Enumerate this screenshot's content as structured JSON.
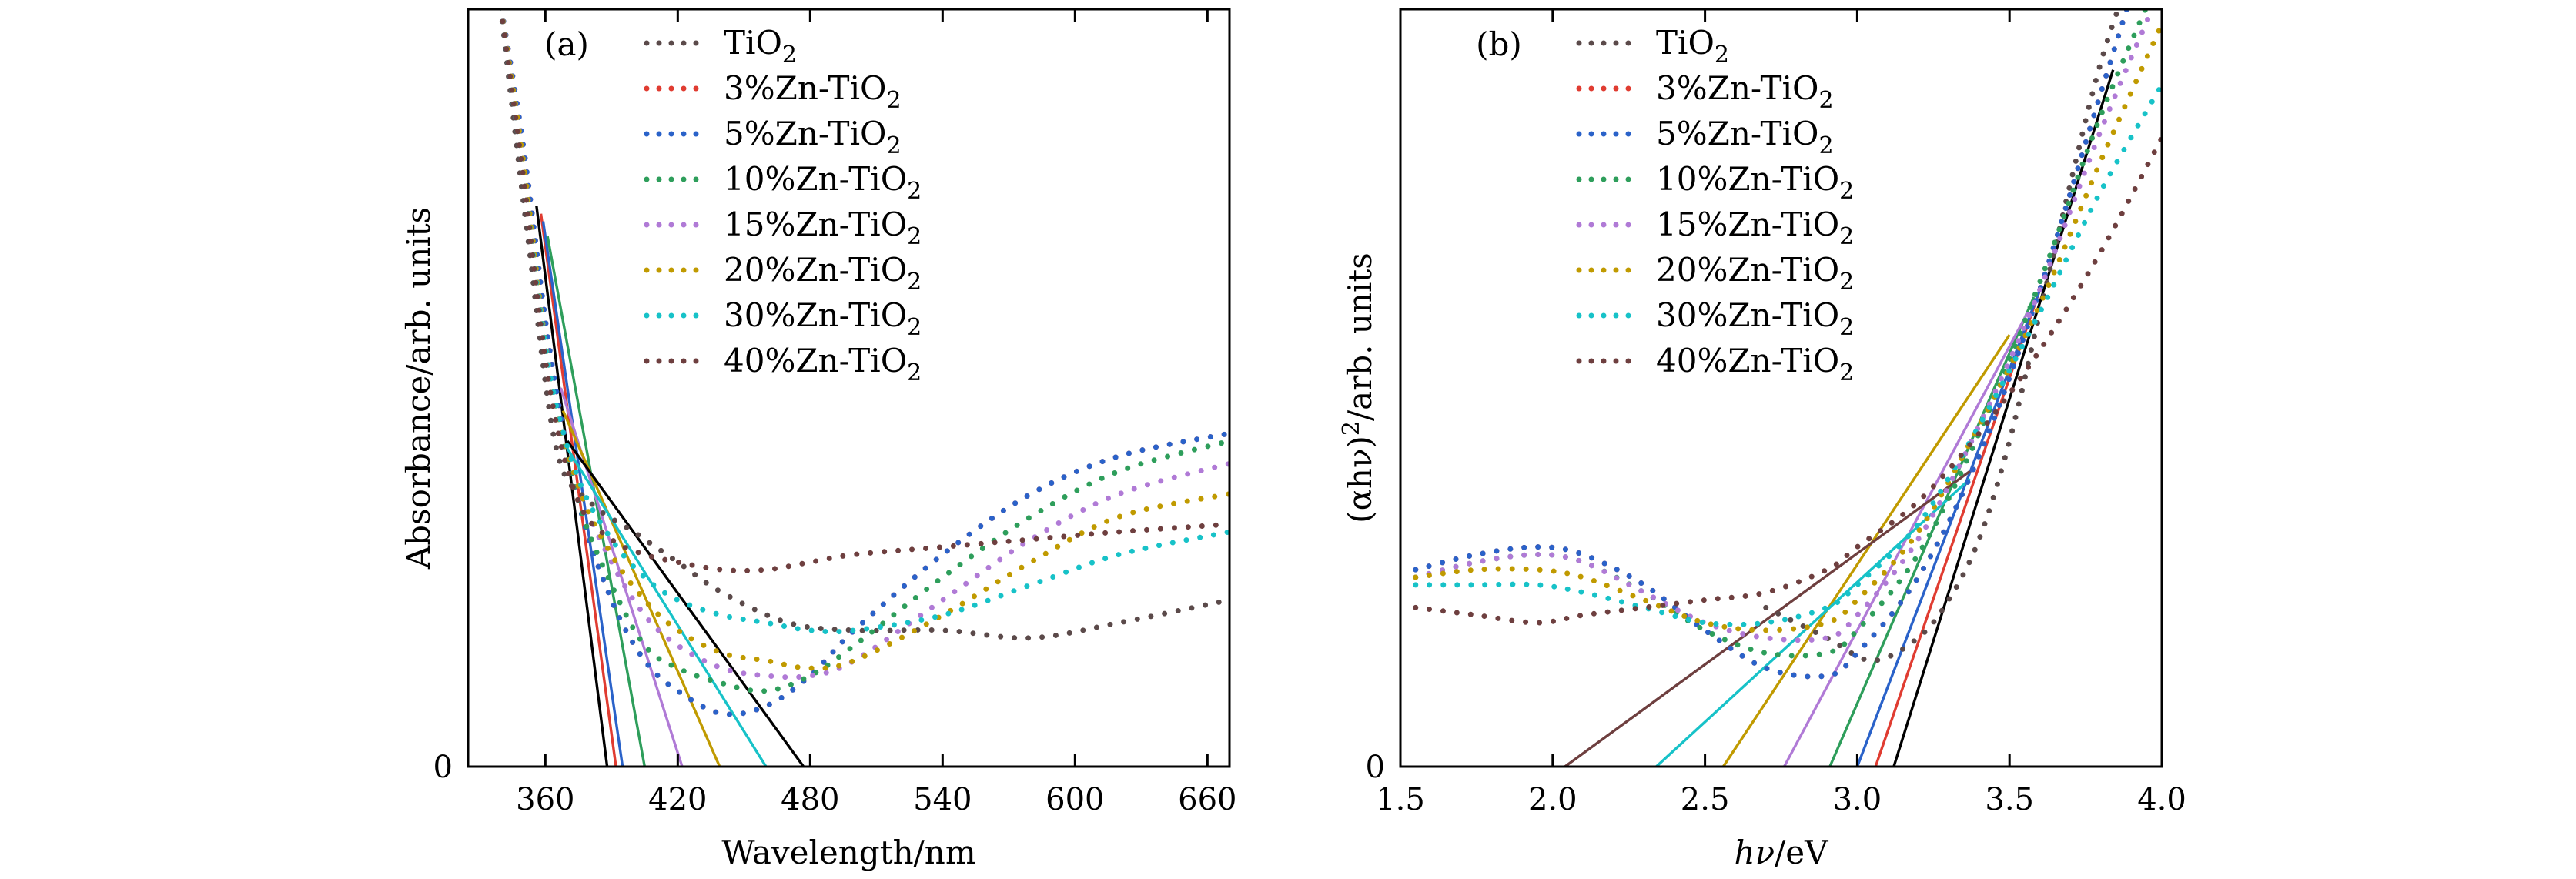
{
  "chart_data": [
    {
      "type": "line",
      "panel_label": "(a)",
      "xlabel": "Wavelength/nm",
      "ylabel": "Absorbance/arb. units",
      "xlim": [
        325,
        670
      ],
      "ylim": [
        0,
        1
      ],
      "xticks": [
        360,
        420,
        480,
        540,
        600,
        660
      ],
      "yticks": [
        0
      ],
      "legend_location": "upper-left",
      "series": [
        {
          "name": "TiO",
          "sub": "2",
          "color": "#5b4a4a",
          "x": [
            339,
            352,
            365,
            380,
            400,
            420,
            440,
            470,
            500,
            540,
            580,
            620,
            670
          ],
          "y": [
            1.02,
            0.7,
            0.42,
            0.35,
            0.31,
            0.27,
            0.23,
            0.19,
            0.18,
            0.18,
            0.17,
            0.19,
            0.22
          ]
        },
        {
          "name": "3%Zn-TiO",
          "sub": "2",
          "color": "#e03c31",
          "x": [
            339,
            350,
            362,
            375,
            390,
            405,
            420,
            440,
            460,
            480,
            500,
            540,
            580,
            620,
            670
          ],
          "y": [
            1.02,
            0.82,
            0.55,
            0.35,
            0.22,
            0.14,
            0.1,
            0.07,
            0.08,
            0.12,
            0.18,
            0.28,
            0.36,
            0.41,
            0.44
          ]
        },
        {
          "name": "5%Zn-TiO",
          "sub": "2",
          "color": "#2a62c9",
          "x": [
            339,
            350,
            362,
            375,
            390,
            405,
            420,
            440,
            460,
            480,
            500,
            540,
            580,
            620,
            670
          ],
          "y": [
            1.02,
            0.82,
            0.55,
            0.35,
            0.22,
            0.14,
            0.1,
            0.07,
            0.08,
            0.12,
            0.18,
            0.28,
            0.36,
            0.41,
            0.44
          ]
        },
        {
          "name": "10%Zn-TiO",
          "sub": "2",
          "color": "#2e9e5b",
          "x": [
            339,
            350,
            362,
            375,
            390,
            405,
            420,
            440,
            460,
            480,
            500,
            540,
            580,
            620,
            670
          ],
          "y": [
            1.02,
            0.8,
            0.52,
            0.35,
            0.24,
            0.16,
            0.13,
            0.11,
            0.1,
            0.12,
            0.16,
            0.25,
            0.33,
            0.39,
            0.43
          ]
        },
        {
          "name": "15%Zn-TiO",
          "sub": "2",
          "color": "#b07ad6",
          "x": [
            339,
            350,
            362,
            375,
            390,
            405,
            420,
            440,
            460,
            480,
            500,
            540,
            580,
            620,
            670
          ],
          "y": [
            1.02,
            0.8,
            0.52,
            0.37,
            0.27,
            0.2,
            0.16,
            0.13,
            0.12,
            0.12,
            0.14,
            0.22,
            0.3,
            0.36,
            0.4
          ]
        },
        {
          "name": "20%Zn-TiO",
          "sub": "2",
          "color": "#c09a00",
          "x": [
            339,
            350,
            362,
            375,
            390,
            405,
            420,
            440,
            460,
            480,
            500,
            540,
            580,
            620,
            670
          ],
          "y": [
            1.02,
            0.8,
            0.52,
            0.37,
            0.28,
            0.22,
            0.18,
            0.15,
            0.14,
            0.13,
            0.14,
            0.2,
            0.27,
            0.33,
            0.36
          ]
        },
        {
          "name": "30%Zn-TiO",
          "sub": "2",
          "color": "#17c2c8",
          "x": [
            339,
            350,
            362,
            375,
            390,
            405,
            420,
            440,
            460,
            480,
            500,
            540,
            580,
            620,
            670
          ],
          "y": [
            1.02,
            0.78,
            0.52,
            0.38,
            0.3,
            0.25,
            0.22,
            0.2,
            0.19,
            0.18,
            0.18,
            0.2,
            0.24,
            0.28,
            0.31
          ]
        },
        {
          "name": "40%Zn-TiO",
          "sub": "2",
          "color": "#6e3f3f",
          "x": [
            339,
            350,
            362,
            375,
            390,
            405,
            420,
            440,
            460,
            480,
            500,
            540,
            580,
            620,
            670
          ],
          "y": [
            1.02,
            0.78,
            0.5,
            0.35,
            0.3,
            0.28,
            0.27,
            0.26,
            0.26,
            0.27,
            0.28,
            0.29,
            0.3,
            0.31,
            0.32
          ]
        }
      ],
      "tangent_lines": [
        {
          "color": "#000000",
          "x": [
            356,
            388
          ],
          "y": [
            0.74,
            0.0
          ]
        },
        {
          "color": "#e03c31",
          "x": [
            358,
            392
          ],
          "y": [
            0.73,
            0.0
          ]
        },
        {
          "color": "#2a62c9",
          "x": [
            359,
            395
          ],
          "y": [
            0.72,
            0.0
          ]
        },
        {
          "color": "#2e9e5b",
          "x": [
            361,
            405
          ],
          "y": [
            0.7,
            0.0
          ]
        },
        {
          "color": "#b07ad6",
          "x": [
            367,
            422
          ],
          "y": [
            0.5,
            0.0
          ]
        },
        {
          "color": "#c09a00",
          "x": [
            368,
            439
          ],
          "y": [
            0.47,
            0.0
          ]
        },
        {
          "color": "#17c2c8",
          "x": [
            370,
            460
          ],
          "y": [
            0.42,
            0.0
          ]
        },
        {
          "color": "#000000",
          "x": [
            370,
            477
          ],
          "y": [
            0.43,
            0.0
          ]
        }
      ]
    },
    {
      "type": "line",
      "panel_label": "(b)",
      "xlabel_parts": [
        "hν",
        "/eV"
      ],
      "ylabel_parts": [
        "(αhν)",
        "2",
        "/arb. units"
      ],
      "xlim": [
        1.5,
        4.0
      ],
      "ylim": [
        0,
        1
      ],
      "xticks": [
        "1.5",
        "2.0",
        "2.5",
        "3.0",
        "3.5",
        "4.0"
      ],
      "yticks": [
        0
      ],
      "legend_location": "upper-left",
      "series": [
        {
          "name": "TiO",
          "sub": "2",
          "color": "#5b4a4a",
          "x": [
            2.7,
            2.9,
            3.05,
            3.2,
            3.3,
            3.4,
            3.5,
            3.6,
            3.7,
            3.8,
            3.9
          ],
          "y": [
            0.21,
            0.17,
            0.14,
            0.17,
            0.22,
            0.3,
            0.43,
            0.6,
            0.77,
            0.93,
            1.05
          ]
        },
        {
          "name": "3%Zn-TiO",
          "sub": "2",
          "color": "#e03c31",
          "x": [
            1.55,
            1.75,
            1.95,
            2.1,
            2.3,
            2.5,
            2.7,
            2.9,
            3.0,
            3.2,
            3.4,
            3.6,
            3.8,
            3.9
          ],
          "y": [
            0.26,
            0.28,
            0.29,
            0.28,
            0.24,
            0.18,
            0.13,
            0.12,
            0.15,
            0.25,
            0.41,
            0.63,
            0.89,
            1.02
          ]
        },
        {
          "name": "5%Zn-TiO",
          "sub": "2",
          "color": "#2a62c9",
          "x": [
            1.55,
            1.75,
            1.95,
            2.1,
            2.3,
            2.5,
            2.7,
            2.9,
            3.0,
            3.2,
            3.4,
            3.6,
            3.8,
            3.9
          ],
          "y": [
            0.26,
            0.28,
            0.29,
            0.28,
            0.24,
            0.18,
            0.13,
            0.12,
            0.15,
            0.25,
            0.41,
            0.63,
            0.89,
            1.02
          ]
        },
        {
          "name": "10%Zn-TiO",
          "sub": "2",
          "color": "#2e9e5b",
          "x": [
            1.55,
            1.75,
            1.95,
            2.1,
            2.3,
            2.5,
            2.7,
            2.9,
            3.0,
            3.2,
            3.4,
            3.6,
            3.8,
            4.0
          ],
          "y": [
            0.25,
            0.27,
            0.28,
            0.27,
            0.23,
            0.18,
            0.15,
            0.15,
            0.18,
            0.28,
            0.44,
            0.64,
            0.86,
            1.05
          ]
        },
        {
          "name": "15%Zn-TiO",
          "sub": "2",
          "color": "#b07ad6",
          "x": [
            1.55,
            1.75,
            1.95,
            2.1,
            2.3,
            2.5,
            2.7,
            2.9,
            3.0,
            3.2,
            3.4,
            3.6,
            3.8,
            4.0
          ],
          "y": [
            0.25,
            0.27,
            0.28,
            0.27,
            0.23,
            0.19,
            0.17,
            0.17,
            0.2,
            0.3,
            0.45,
            0.63,
            0.84,
            1.03
          ]
        },
        {
          "name": "20%Zn-TiO",
          "sub": "2",
          "color": "#c09a00",
          "x": [
            1.55,
            1.75,
            1.95,
            2.1,
            2.3,
            2.5,
            2.7,
            2.9,
            3.0,
            3.2,
            3.4,
            3.6,
            3.8,
            4.0
          ],
          "y": [
            0.25,
            0.26,
            0.26,
            0.25,
            0.22,
            0.19,
            0.18,
            0.19,
            0.22,
            0.31,
            0.45,
            0.61,
            0.8,
            0.98
          ]
        },
        {
          "name": "30%Zn-TiO",
          "sub": "2",
          "color": "#17c2c8",
          "x": [
            1.55,
            1.75,
            1.95,
            2.1,
            2.3,
            2.5,
            2.7,
            2.9,
            3.0,
            3.2,
            3.4,
            3.6,
            3.8,
            4.0
          ],
          "y": [
            0.24,
            0.24,
            0.24,
            0.23,
            0.21,
            0.19,
            0.19,
            0.21,
            0.24,
            0.32,
            0.45,
            0.6,
            0.76,
            0.9
          ]
        },
        {
          "name": "40%Zn-TiO",
          "sub": "2",
          "color": "#6e3f3f",
          "x": [
            1.55,
            1.75,
            1.95,
            2.1,
            2.3,
            2.5,
            2.7,
            2.9,
            3.0,
            3.2,
            3.4,
            3.6,
            3.8,
            4.0
          ],
          "y": [
            0.21,
            0.2,
            0.19,
            0.2,
            0.21,
            0.22,
            0.23,
            0.26,
            0.29,
            0.35,
            0.44,
            0.55,
            0.68,
            0.83
          ]
        }
      ],
      "tangent_lines": [
        {
          "color": "#000000",
          "x": [
            3.12,
            3.84
          ],
          "y": [
            0.0,
            0.92
          ]
        },
        {
          "color": "#e03c31",
          "x": [
            3.06,
            3.6
          ],
          "y": [
            0.0,
            0.63
          ]
        },
        {
          "color": "#2a62c9",
          "x": [
            3.0,
            3.6
          ],
          "y": [
            0.0,
            0.63
          ]
        },
        {
          "color": "#2e9e5b",
          "x": [
            2.91,
            3.58
          ],
          "y": [
            0.0,
            0.62
          ]
        },
        {
          "color": "#b07ad6",
          "x": [
            2.76,
            3.56
          ],
          "y": [
            0.0,
            0.6
          ]
        },
        {
          "color": "#c09a00",
          "x": [
            2.56,
            3.5
          ],
          "y": [
            0.0,
            0.57
          ]
        },
        {
          "color": "#17c2c8",
          "x": [
            2.34,
            3.37
          ],
          "y": [
            0.0,
            0.38
          ]
        },
        {
          "color": "#6e3f3f",
          "x": [
            2.04,
            3.37
          ],
          "y": [
            0.0,
            0.39
          ]
        }
      ]
    }
  ],
  "y_zero_label": "0"
}
